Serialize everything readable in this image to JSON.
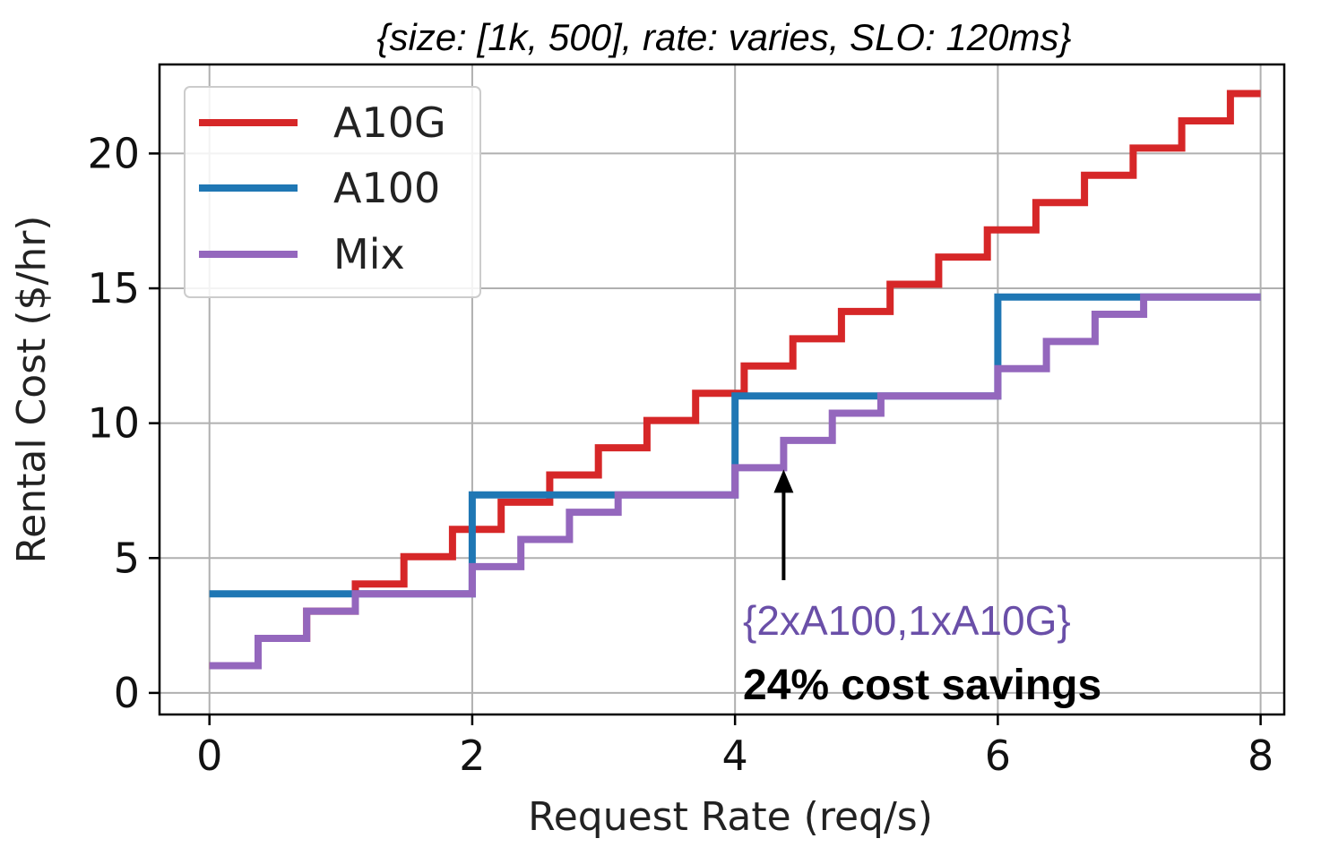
{
  "chart_data": {
    "type": "line",
    "title": "{size: [1k, 500], rate: varies, SLO: 120ms}",
    "xlabel": "Request Rate (req/s)",
    "ylabel": "Rental Cost ($/hr)",
    "xlim": [
      -0.38,
      8.18
    ],
    "ylim": [
      -0.8,
      23.3
    ],
    "xticks": [
      0,
      2,
      4,
      6,
      8
    ],
    "yticks": [
      0,
      5,
      10,
      15,
      20
    ],
    "grid": true,
    "legend_position": "top-left",
    "series": [
      {
        "name": "A10G",
        "color": "#d62728",
        "step_x": [
          0,
          0.37,
          0.74,
          1.11,
          1.48,
          1.85,
          2.22,
          2.59,
          2.96,
          3.33,
          3.7,
          4.07,
          4.44,
          4.81,
          5.18,
          5.55,
          5.92,
          6.29,
          6.66,
          7.03,
          7.4,
          7.77,
          8.0
        ],
        "step_y": [
          1.01,
          2.02,
          3.03,
          4.04,
          5.05,
          6.06,
          7.07,
          8.08,
          9.09,
          10.1,
          11.11,
          12.12,
          13.13,
          14.14,
          15.15,
          16.16,
          17.17,
          18.18,
          19.19,
          20.2,
          21.21,
          22.22,
          22.22
        ]
      },
      {
        "name": "A100",
        "color": "#1f77b4",
        "step_x": [
          0,
          2.0,
          4.0,
          6.0,
          8.0
        ],
        "step_y": [
          3.67,
          7.34,
          11.01,
          14.68,
          14.68
        ]
      },
      {
        "name": "Mix",
        "color": "#9467bd",
        "step_x": [
          0,
          0.37,
          0.74,
          1.11,
          2.0,
          2.37,
          2.74,
          3.11,
          4.0,
          4.37,
          4.74,
          5.11,
          6.0,
          6.37,
          6.74,
          7.11,
          8.0
        ],
        "step_y": [
          1.01,
          2.02,
          3.03,
          3.67,
          4.68,
          5.69,
          6.7,
          7.34,
          8.35,
          9.36,
          10.37,
          11.01,
          12.02,
          13.03,
          14.04,
          14.68,
          14.68
        ]
      }
    ],
    "annotation": {
      "x": 4.37,
      "y": 8.35,
      "line1": "{2xA100,1xA10G}",
      "line2": "24% cost savings",
      "line1_color": "#6a4fa8"
    }
  }
}
